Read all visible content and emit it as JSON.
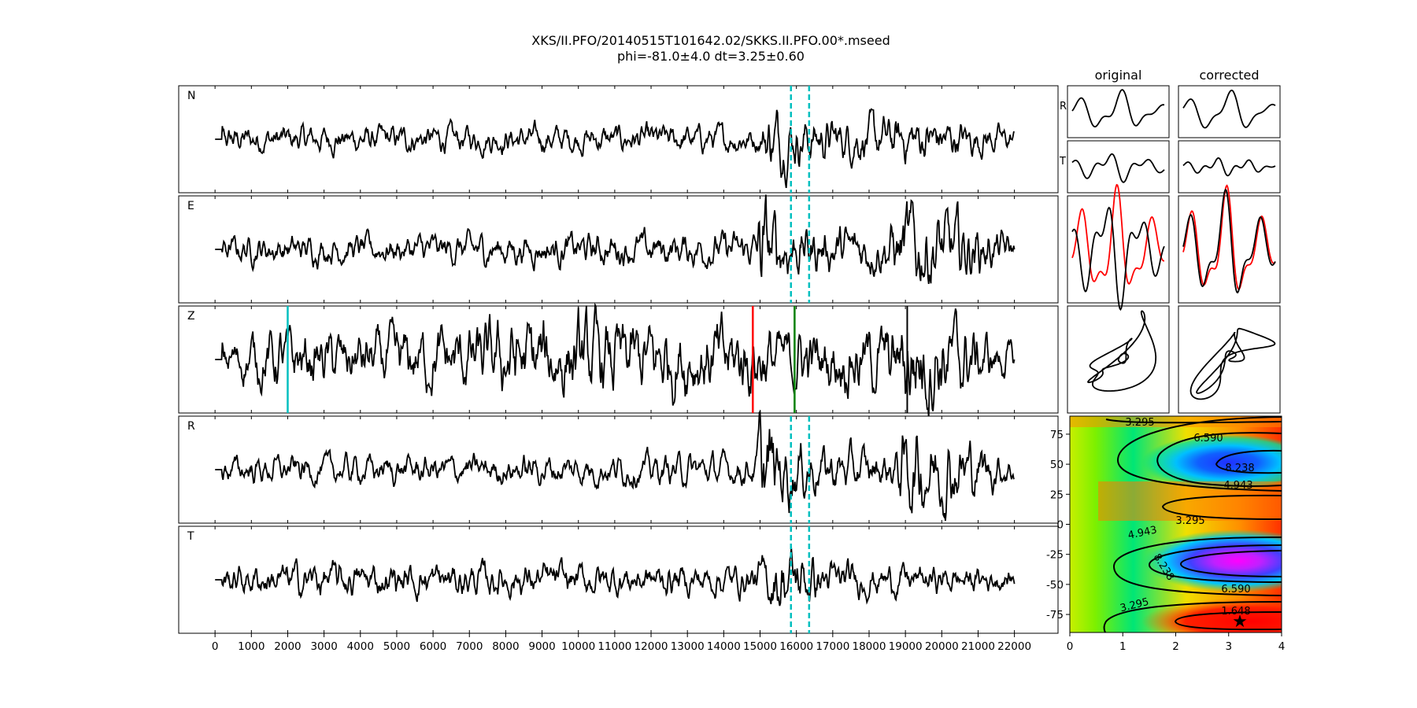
{
  "title": {
    "line1": "XKS/II.PFO/20140515T101642.02/SKKS.II.PFO.00*.mseed",
    "line2": "phi=-81.0±4.0 dt=3.25±0.60"
  },
  "colors": {
    "trace": "#000000",
    "window_marker": "#00bfbf",
    "pick_red": "#ff0000",
    "pick_green": "#008000",
    "pick_cyan": "#00bfbf",
    "corrected_red": "#ff0000"
  },
  "chart_data": [
    {
      "type": "line",
      "name": "seismograms",
      "panels": [
        "N",
        "E",
        "Z",
        "R",
        "T"
      ],
      "xlim": [
        -1000,
        23200
      ],
      "xticks": [
        0,
        1000,
        2000,
        3000,
        4000,
        5000,
        6000,
        7000,
        8000,
        9000,
        10000,
        11000,
        12000,
        13000,
        14000,
        15000,
        16000,
        17000,
        18000,
        19000,
        20000,
        21000,
        22000
      ],
      "data_range": [
        0,
        22000
      ],
      "window": [
        15850,
        16350
      ],
      "z_picks": [
        {
          "x": 2000,
          "color": "#00bfbf"
        },
        {
          "x": 14800,
          "color": "#ff0000"
        },
        {
          "x": 15950,
          "color": "#008000"
        }
      ]
    },
    {
      "type": "line",
      "name": "particle-motion-panels",
      "column_titles": [
        "original",
        "corrected"
      ],
      "row_labels": [
        "R",
        "T"
      ]
    },
    {
      "type": "heatmap",
      "name": "misfit-grid",
      "xlim": [
        0,
        4
      ],
      "ylim": [
        -90,
        90
      ],
      "xticks": [
        0,
        1,
        2,
        3,
        4
      ],
      "yticks": [
        -75,
        -50,
        -25,
        0,
        25,
        50,
        75
      ],
      "contour_labels": [
        "3.295",
        "6.590",
        "8.238",
        "4.943",
        "3.295",
        "4.943",
        "8.238",
        "6.590",
        "3.295",
        "1.648"
      ],
      "best": {
        "dt": 3.25,
        "phi": -81.0
      }
    }
  ]
}
